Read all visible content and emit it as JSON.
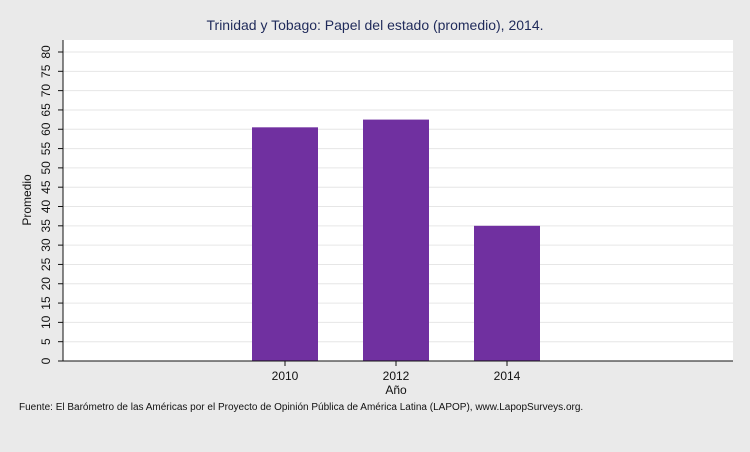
{
  "chart_data": {
    "type": "bar",
    "title": "Trinidad y Tobago: Papel del estado (promedio), 2014.",
    "xlabel": "Año",
    "ylabel": "Promedio",
    "categories": [
      "2010",
      "2012",
      "2014"
    ],
    "values": [
      60.5,
      62.5,
      35.0
    ],
    "ylim": [
      0,
      80
    ],
    "yticks": [
      "0",
      "5",
      "10",
      "15",
      "20",
      "25",
      "30",
      "35",
      "40",
      "45",
      "50",
      "55",
      "60",
      "65",
      "70",
      "75",
      "80"
    ],
    "grid": true,
    "bar_color": "#7030a0",
    "source": "Fuente: El Barómetro de las Américas por el Proyecto de Opinión Pública de América Latina (LAPOP), www.LapopSurveys.org."
  },
  "colors": {
    "background": "#eaeaea",
    "plot_background": "#ffffff",
    "grid": "#e6e6e6",
    "title": "#1f2a5a"
  }
}
